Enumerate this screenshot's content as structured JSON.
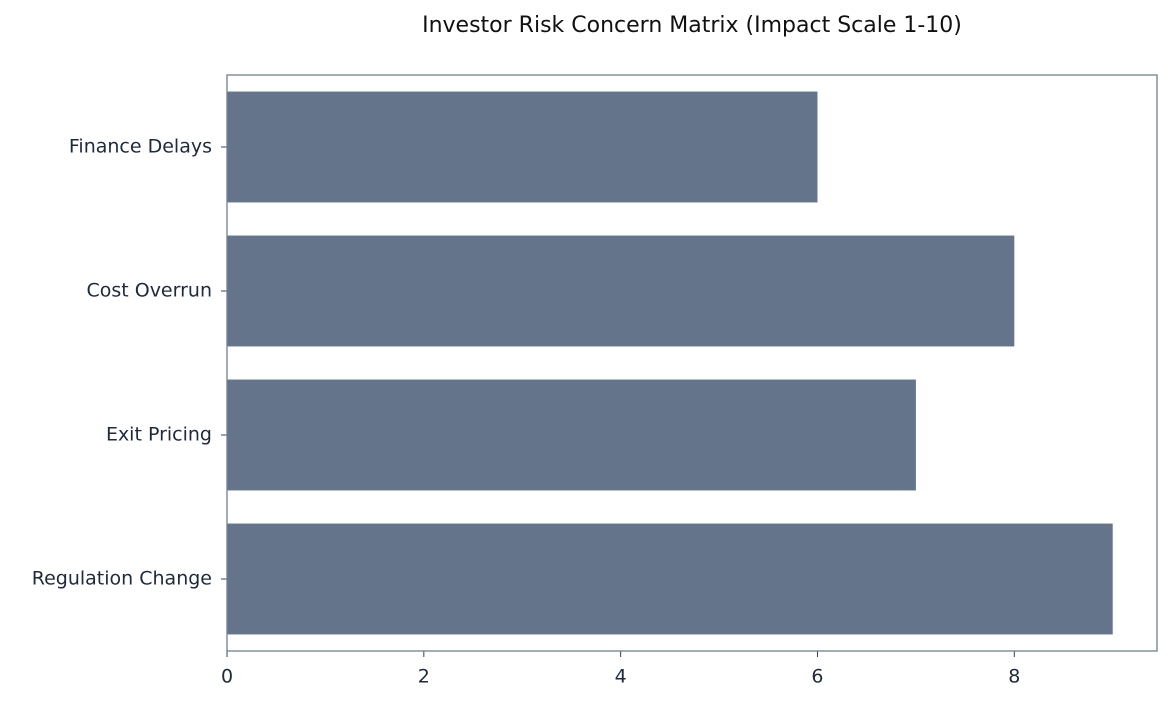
{
  "chart_data": {
    "type": "bar",
    "orientation": "horizontal",
    "title": "Investor Risk Concern Matrix (Impact Scale 1-10)",
    "categories": [
      "Finance Delays",
      "Cost Overrun",
      "Exit Pricing",
      "Regulation Change"
    ],
    "values": [
      6,
      8,
      7,
      9
    ],
    "color": "#64748b",
    "xlim": [
      0,
      9.45
    ],
    "xticks": [
      0,
      2,
      4,
      6,
      8
    ],
    "grid": false
  }
}
